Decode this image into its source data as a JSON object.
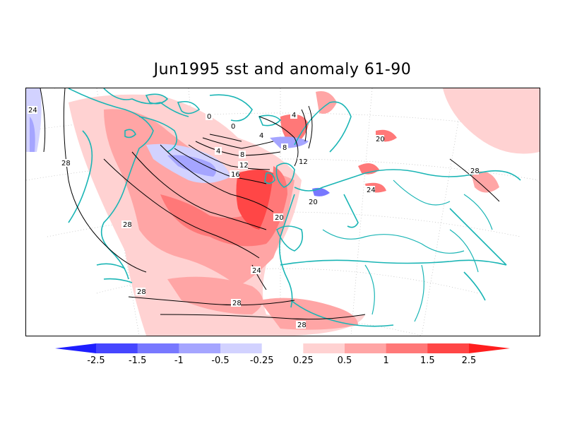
{
  "title": "Jun1995 sst and anomaly 61-90",
  "colorbar": {
    "colors": [
      "#1e1eff",
      "#4646ff",
      "#7878ff",
      "#a5a5ff",
      "#d2d2ff",
      "#ffffff",
      "#ffd2d2",
      "#ffa5a5",
      "#ff7878",
      "#ff4646",
      "#ff1e1e"
    ],
    "labels": [
      "-2.5",
      "-1.5",
      "-1",
      "-0.5",
      "-0.25",
      "0.25",
      "0.5",
      "1",
      "1.5",
      "2.5"
    ]
  },
  "contour_labels": [
    "24",
    "28",
    "28",
    "28",
    "28",
    "28",
    "24",
    "20",
    "16",
    "12",
    "8",
    "4",
    "0",
    "0",
    "4",
    "4",
    "8",
    "12",
    "20",
    "20",
    "24",
    "28"
  ],
  "style": {
    "coast_color": "#1ab5b5",
    "contour_color": "#000000"
  }
}
